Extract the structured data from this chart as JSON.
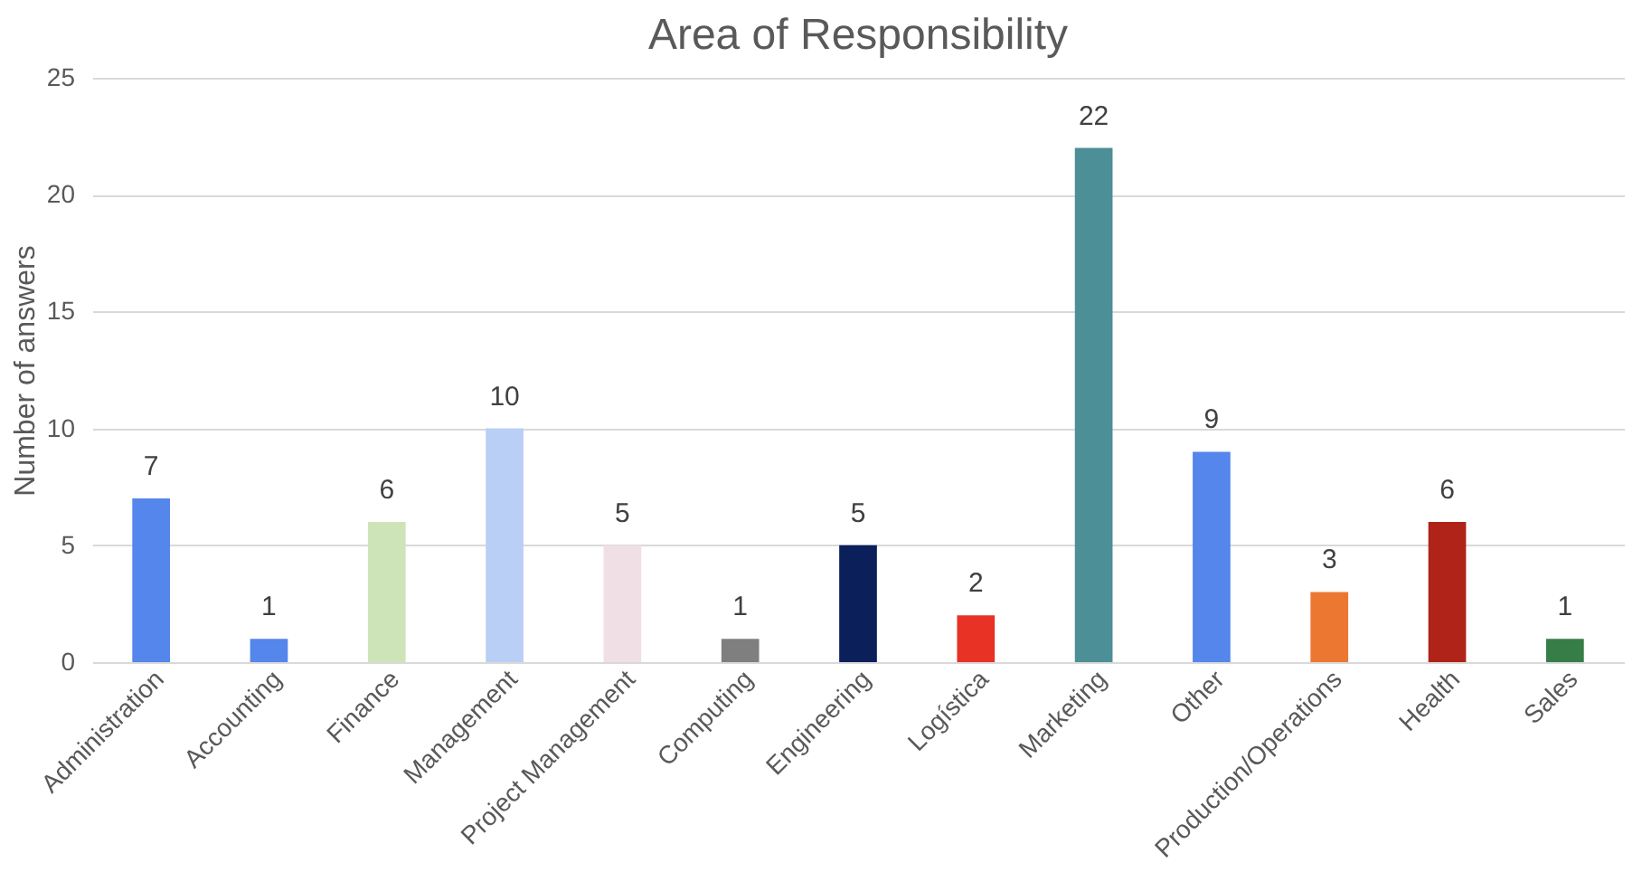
{
  "chart_data": {
    "type": "bar",
    "title": "Area of Responsibility",
    "ylabel": "Number of answers",
    "categories": [
      "Administration",
      "Accounting",
      "Finance",
      "Management",
      "Project Management",
      "Computing",
      "Engineering",
      "Logística",
      "Marketing",
      "Other",
      "Production/Operations",
      "Health",
      "Sales"
    ],
    "values": [
      7,
      1,
      6,
      10,
      5,
      1,
      5,
      2,
      22,
      9,
      3,
      6,
      1
    ],
    "colors": [
      "#5486ec",
      "#5486ec",
      "#cde4b8",
      "#b9cff5",
      "#f0dfe5",
      "#7f7f7f",
      "#0b1f5a",
      "#e83226",
      "#4c8f96",
      "#5486ec",
      "#ec7731",
      "#b02318",
      "#377d48"
    ],
    "ylim": [
      0,
      25
    ],
    "yticks": [
      0,
      5,
      10,
      15,
      20,
      25
    ],
    "grid": "y",
    "data_labels": true,
    "legend": false
  }
}
